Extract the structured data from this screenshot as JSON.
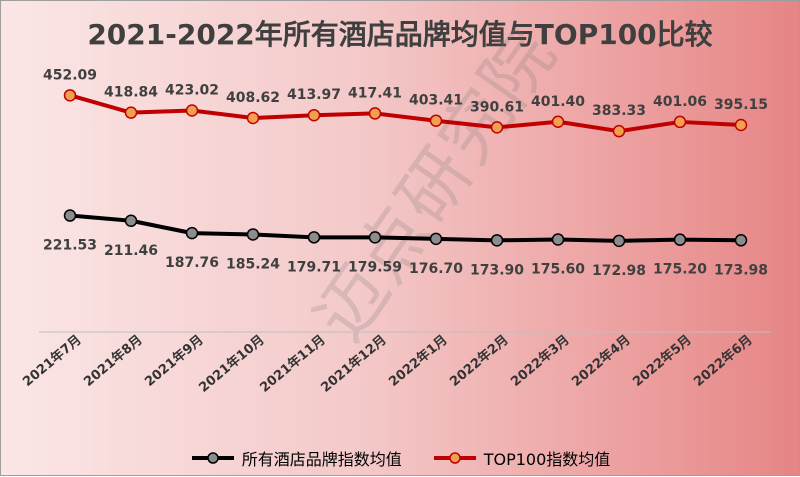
{
  "chart_data": {
    "type": "line",
    "title": "2021-2022年所有酒店品牌均值与TOP100比较",
    "categories": [
      "2021年7月",
      "2021年8月",
      "2021年9月",
      "2021年10月",
      "2021年11月",
      "2021年12月",
      "2022年1月",
      "2022年2月",
      "2022年3月",
      "2022年4月",
      "2022年5月",
      "2022年6月"
    ],
    "series": [
      {
        "name": "所有酒店品牌指数均值",
        "color": "#000000",
        "marker_fill": "#8c8c8c",
        "values": [
          221.53,
          211.46,
          187.76,
          185.24,
          179.71,
          179.59,
          176.7,
          173.9,
          175.6,
          172.98,
          175.2,
          173.98
        ]
      },
      {
        "name": "TOP100指数均值",
        "color": "#c00000",
        "marker_fill": "#f0a050",
        "values": [
          452.09,
          418.84,
          423.02,
          408.62,
          413.97,
          417.41,
          403.41,
          390.61,
          401.4,
          383.33,
          401.06,
          395.15
        ]
      }
    ],
    "ylim": [
      0,
      470
    ],
    "grid": false,
    "legend_position": "bottom",
    "watermark": "迈点研究院"
  }
}
